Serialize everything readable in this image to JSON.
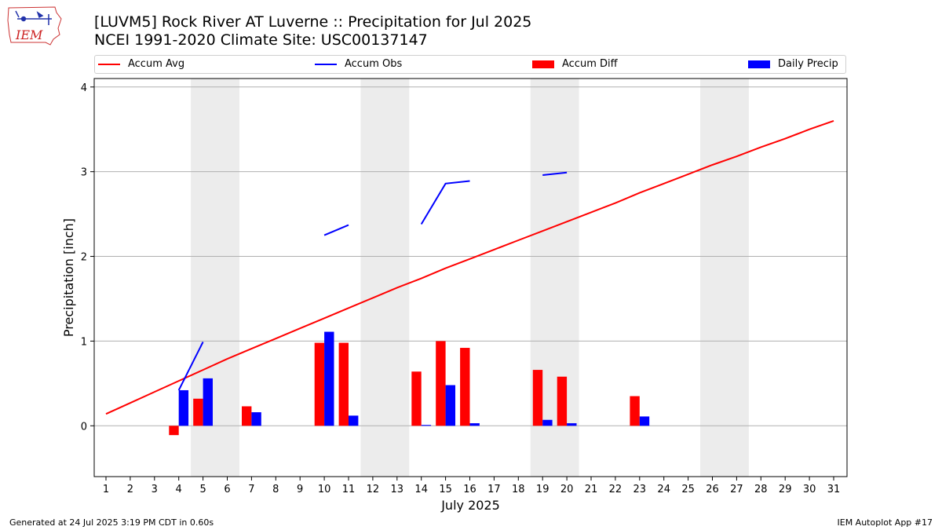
{
  "header": {
    "title_line1": "[LUVM5] Rock River  AT Luverne :: Precipitation for Jul 2025",
    "title_line2": "NCEI 1991-2020 Climate Site: USC00137147",
    "logo_text": "IEM"
  },
  "legend": {
    "items": [
      {
        "label": "Accum Avg",
        "kind": "line",
        "color": "#ff0000"
      },
      {
        "label": "Accum Obs",
        "kind": "line",
        "color": "#0000ff"
      },
      {
        "label": "Accum Diff",
        "kind": "bar",
        "color": "#ff0000"
      },
      {
        "label": "Daily Precip",
        "kind": "bar",
        "color": "#0000ff"
      }
    ]
  },
  "footer": {
    "generated": "Generated at 24 Jul 2025 3:19 PM CDT in 0.60s",
    "app": "IEM Autoplot App #17"
  },
  "chart_data": {
    "type": "bar",
    "title": "[LUVM5] Rock River  AT Luverne :: Precipitation for Jul 2025",
    "xlabel": "July 2025",
    "ylabel": "Precipitation [inch]",
    "ylim": [
      -0.6,
      4.1
    ],
    "yticks": [
      0,
      1,
      2,
      3,
      4
    ],
    "grid": true,
    "categories": [
      "1",
      "2",
      "3",
      "4",
      "5",
      "6",
      "7",
      "8",
      "9",
      "10",
      "11",
      "12",
      "13",
      "14",
      "15",
      "16",
      "17",
      "18",
      "19",
      "20",
      "21",
      "22",
      "23",
      "24",
      "25",
      "26",
      "27",
      "28",
      "29",
      "30",
      "31"
    ],
    "weekend_shading": [
      [
        5,
        6
      ],
      [
        12,
        13
      ],
      [
        19,
        20
      ],
      [
        26,
        27
      ]
    ],
    "series": [
      {
        "name": "Accum Avg",
        "kind": "line",
        "color": "#ff0000",
        "values": [
          0.14,
          0.27,
          0.4,
          0.53,
          0.66,
          0.79,
          0.91,
          1.03,
          1.15,
          1.27,
          1.39,
          1.51,
          1.63,
          1.74,
          1.86,
          1.97,
          2.08,
          2.19,
          2.3,
          2.41,
          2.52,
          2.63,
          2.75,
          2.86,
          2.97,
          3.08,
          3.18,
          3.29,
          3.39,
          3.5,
          3.6
        ]
      },
      {
        "name": "Accum Obs",
        "kind": "line",
        "color": "#0000ff",
        "values": [
          null,
          null,
          null,
          0.42,
          0.99,
          null,
          null,
          null,
          null,
          2.25,
          2.37,
          null,
          null,
          2.38,
          2.86,
          2.89,
          null,
          null,
          2.96,
          2.99,
          null,
          null,
          null,
          null,
          null,
          null,
          null,
          null,
          null,
          null,
          null
        ]
      },
      {
        "name": "Accum Diff",
        "kind": "bar",
        "color": "#ff0000",
        "values": [
          null,
          null,
          null,
          -0.11,
          0.32,
          null,
          0.23,
          null,
          null,
          0.98,
          0.98,
          null,
          null,
          0.64,
          1.0,
          0.92,
          null,
          null,
          0.66,
          0.58,
          null,
          null,
          0.35,
          null,
          null,
          null,
          null,
          null,
          null,
          null,
          null
        ]
      },
      {
        "name": "Daily Precip",
        "kind": "bar",
        "color": "#0000ff",
        "values": [
          null,
          null,
          null,
          0.42,
          0.56,
          null,
          0.16,
          null,
          null,
          1.11,
          0.12,
          null,
          null,
          0.01,
          0.48,
          0.03,
          null,
          null,
          0.07,
          0.03,
          null,
          null,
          0.11,
          null,
          null,
          null,
          null,
          null,
          null,
          null,
          null
        ]
      }
    ]
  }
}
